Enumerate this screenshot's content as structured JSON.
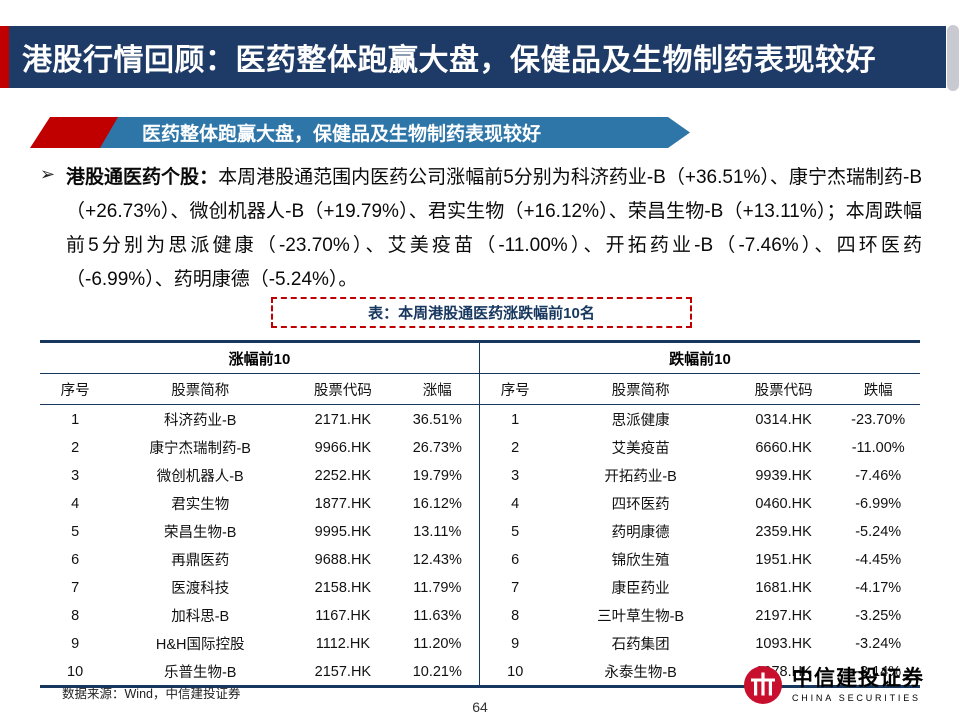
{
  "header": {
    "title": "港股行情回顾：医药整体跑赢大盘，保健品及生物制药表现较好"
  },
  "ribbon": {
    "label": "医药整体跑赢大盘，保健品及生物制药表现较好"
  },
  "paragraph": {
    "bullet": "➢",
    "lead": "港股通医药个股：",
    "body": "本周港股通范围内医药公司涨幅前5分别为科济药业-B（+36.51%）、康宁杰瑞制药-B（+26.73%）、微创机器人-B（+19.79%）、君实生物（+16.12%）、荣昌生物-B（+13.11%）；本周跌幅前5分别为思派健康（-23.70%）、艾美疫苗（-11.00%）、开拓药业-B（-7.46%）、四环医药（-6.99%）、药明康德（-5.24%）。"
  },
  "table": {
    "caption": "表：本周港股通医药涨跌幅前10名",
    "left": {
      "group_header": "涨幅前10",
      "columns": [
        "序号",
        "股票简称",
        "股票代码",
        "涨幅"
      ],
      "rows": [
        [
          "1",
          "科济药业-B",
          "2171.HK",
          "36.51%"
        ],
        [
          "2",
          "康宁杰瑞制药-B",
          "9966.HK",
          "26.73%"
        ],
        [
          "3",
          "微创机器人-B",
          "2252.HK",
          "19.79%"
        ],
        [
          "4",
          "君实生物",
          "1877.HK",
          "16.12%"
        ],
        [
          "5",
          "荣昌生物-B",
          "9995.HK",
          "13.11%"
        ],
        [
          "6",
          "再鼎医药",
          "9688.HK",
          "12.43%"
        ],
        [
          "7",
          "医渡科技",
          "2158.HK",
          "11.79%"
        ],
        [
          "8",
          "加科思-B",
          "1167.HK",
          "11.63%"
        ],
        [
          "9",
          "H&H国际控股",
          "1112.HK",
          "11.20%"
        ],
        [
          "10",
          "乐普生物-B",
          "2157.HK",
          "10.21%"
        ]
      ]
    },
    "right": {
      "group_header": "跌幅前10",
      "columns": [
        "序号",
        "股票简称",
        "股票代码",
        "跌幅"
      ],
      "rows": [
        [
          "1",
          "思派健康",
          "0314.HK",
          "-23.70%"
        ],
        [
          "2",
          "艾美疫苗",
          "6660.HK",
          "-11.00%"
        ],
        [
          "3",
          "开拓药业-B",
          "9939.HK",
          "-7.46%"
        ],
        [
          "4",
          "四环医药",
          "0460.HK",
          "-6.99%"
        ],
        [
          "5",
          "药明康德",
          "2359.HK",
          "-5.24%"
        ],
        [
          "6",
          "锦欣生殖",
          "1951.HK",
          "-4.45%"
        ],
        [
          "7",
          "康臣药业",
          "1681.HK",
          "-4.17%"
        ],
        [
          "8",
          "三叶草生物-B",
          "2197.HK",
          "-3.25%"
        ],
        [
          "9",
          "石药集团",
          "1093.HK",
          "-3.24%"
        ],
        [
          "10",
          "永泰生物-B",
          "6978.HK",
          "-3.14%"
        ]
      ]
    }
  },
  "footer": {
    "source": "数据来源：Wind，中信建投证券",
    "logo_cn": "中信建投证券",
    "logo_en": "CHINA SECURITIES",
    "page_number": "64"
  },
  "colors": {
    "banner_navy": "#1E3A66",
    "accent_red": "#C00000",
    "ribbon_blue": "#2E75A8",
    "table_line_navy": "#17375E"
  }
}
